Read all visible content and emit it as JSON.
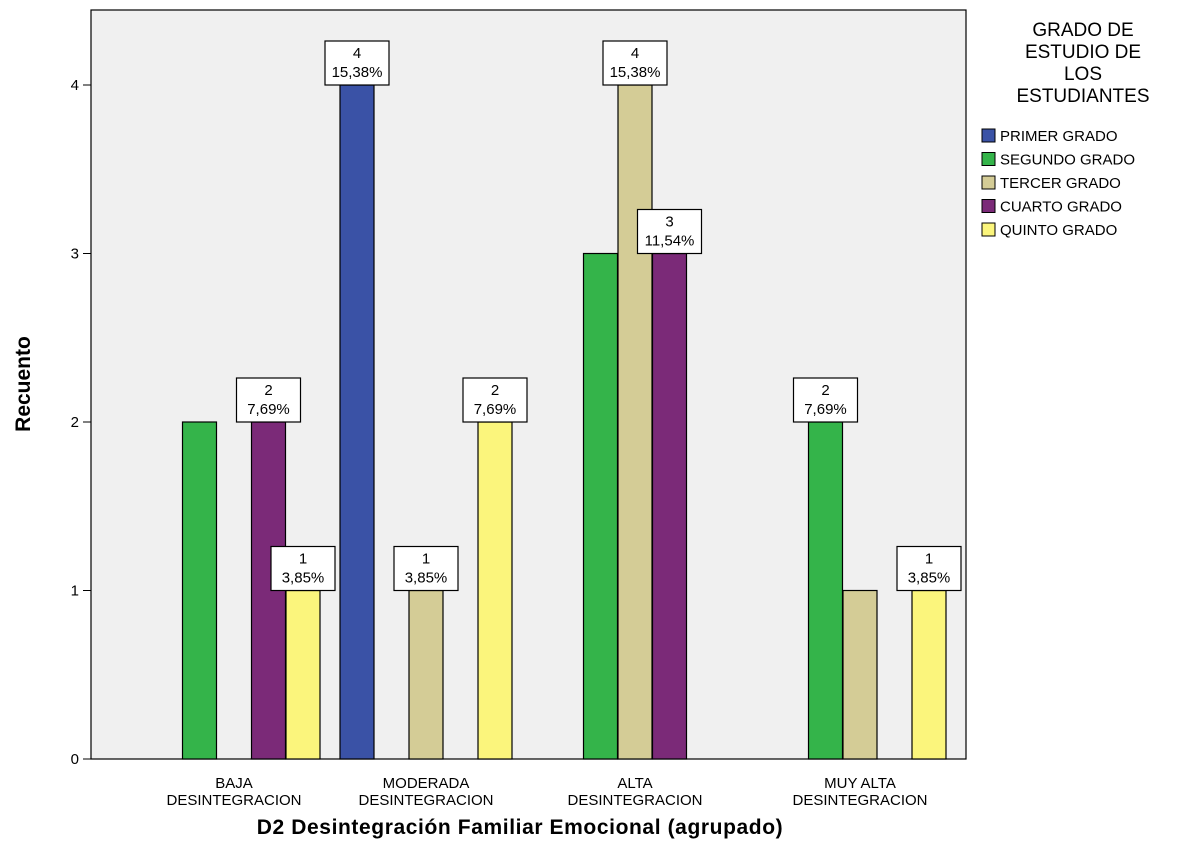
{
  "chart_data": {
    "type": "bar",
    "xlabel": "D2 Desintegración Familiar Emocional (agrupado)",
    "ylabel": "Recuento",
    "ylim": [
      0,
      4.35
    ],
    "yticks": [
      0,
      1,
      2,
      3,
      4
    ],
    "grid": false,
    "legend_position": "right",
    "legend_title": [
      "GRADO DE",
      "ESTUDIO DE",
      "LOS",
      "ESTUDIANTES"
    ],
    "categories": [
      [
        "BAJA",
        "DESINTEGRACION"
      ],
      [
        "MODERADA",
        "DESINTEGRACION"
      ],
      [
        "ALTA",
        "DESINTEGRACION"
      ],
      [
        "MUY ALTA",
        "DESINTEGRACION"
      ]
    ],
    "series": [
      {
        "name": "PRIMER GRADO",
        "color": "#3a52a6",
        "values": [
          0,
          4,
          0,
          0
        ],
        "labels": [
          null,
          [
            "4",
            "15,38%"
          ],
          null,
          null
        ]
      },
      {
        "name": "SEGUNDO GRADO",
        "color": "#34b44a",
        "values": [
          2,
          0,
          3,
          2
        ],
        "labels": [
          null,
          null,
          null,
          [
            "2",
            "7,69%"
          ]
        ]
      },
      {
        "name": "TERCER GRADO",
        "color": "#d4cc96",
        "values": [
          0,
          1,
          4,
          1
        ],
        "labels": [
          null,
          [
            "1",
            "3,85%"
          ],
          [
            "4",
            "15,38%"
          ],
          null
        ]
      },
      {
        "name": "CUARTO GRADO",
        "color": "#7b2a78",
        "values": [
          2,
          0,
          3,
          0
        ],
        "labels": [
          [
            "2",
            "7,69%"
          ],
          null,
          [
            "3",
            "11,54%"
          ],
          null
        ]
      },
      {
        "name": "QUINTO GRADO",
        "color": "#fbf57c",
        "values": [
          1,
          2,
          0,
          1
        ],
        "labels": [
          [
            "1",
            "3,85%"
          ],
          [
            "2",
            "7,69%"
          ],
          null,
          [
            "1",
            "3,85%"
          ]
        ]
      }
    ]
  }
}
